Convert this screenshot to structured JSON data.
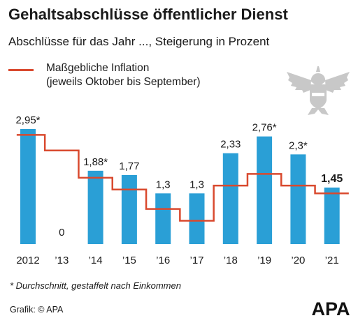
{
  "header": {
    "title": "Gehaltsabschlüsse öffentlicher Dienst",
    "subtitle": "Abschlüsse für das Jahr ..., Steigerung in Prozent"
  },
  "legend": {
    "line1": "Maßgebliche Inflation",
    "line2": "(jeweils Oktober bis September)",
    "color": "#d9492e"
  },
  "footer": {
    "footnote": "* Durchschnitt, gestaffelt nach Einkommen",
    "source": "Grafik: © APA",
    "logo_text": "APA"
  },
  "colors": {
    "bar": "#2a9fd6",
    "inflation_line": "#d9492e",
    "eagle": "#c8c8c8",
    "text": "#1a1a1a"
  },
  "chart_data": {
    "type": "bar",
    "categories": [
      "2012",
      "’13",
      "’14",
      "’15",
      "’16",
      "’17",
      "’18",
      "’19",
      "’20",
      "’21"
    ],
    "series": [
      {
        "values": [
          2.95,
          0,
          1.88,
          1.77,
          1.3,
          1.3,
          2.33,
          2.76,
          2.3,
          1.45
        ],
        "labels": [
          "2,95*",
          "0",
          "1,88*",
          "1,77",
          "1,3",
          "1,3",
          "2,33",
          "2,76*",
          "2,3*",
          "1,45"
        ],
        "highlight_last": true
      },
      {
        "name": "Maßgebliche Inflation (jeweils Oktober bis September)",
        "type": "step-line",
        "values": [
          2.8,
          2.4,
          1.7,
          1.4,
          0.9,
          0.6,
          1.5,
          1.8,
          1.5,
          1.3
        ]
      }
    ],
    "ylim": [
      0,
      3.2
    ],
    "grid": false,
    "legend_position": "top-left"
  }
}
